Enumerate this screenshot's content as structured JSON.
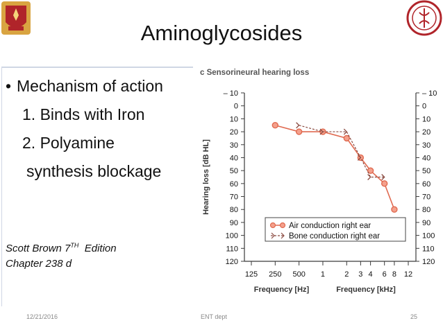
{
  "slide": {
    "title": "Aminoglycosides",
    "bullet": "Mechanism of action",
    "points": [
      "1. Binds with Iron",
      "2. Polyamine",
      "synthesis blockage"
    ],
    "reference_author": "Scott Brown 7",
    "reference_edition_sup": "TH",
    "reference_edition_rest": "  Edition",
    "reference_chapter": "Chapter 238 d",
    "footer_date": "12/21/2016",
    "footer_center": "ENT dept",
    "footer_page": "25"
  },
  "chart_data": {
    "type": "line",
    "title": "c  Sensorineural hearing loss",
    "ylabel": "Hearing loss [dB HL]",
    "xlabel_left": "Frequency [Hz]",
    "xlabel_right": "Frequency [kHz]",
    "ylim": [
      -10,
      120
    ],
    "y_reversed": true,
    "x_scale": "log",
    "y_ticks": [
      "– 10",
      "0",
      "10",
      "20",
      "30",
      "40",
      "50",
      "60",
      "70",
      "80",
      "90",
      "100",
      "110",
      "120"
    ],
    "y_tick_values": [
      -10,
      0,
      10,
      20,
      30,
      40,
      50,
      60,
      70,
      80,
      90,
      100,
      110,
      120
    ],
    "x_ticks": [
      {
        "hz": 125,
        "label": "125"
      },
      {
        "hz": 250,
        "label": "250"
      },
      {
        "hz": 500,
        "label": "500"
      },
      {
        "hz": 1000,
        "label": "1"
      },
      {
        "hz": 2000,
        "label": "2"
      },
      {
        "hz": 3000,
        "label": "3"
      },
      {
        "hz": 4000,
        "label": "4"
      },
      {
        "hz": 6000,
        "label": "6"
      },
      {
        "hz": 8000,
        "label": "8"
      },
      {
        "hz": 12000,
        "label": "12"
      }
    ],
    "series": [
      {
        "name": "Air conduction right ear",
        "marker": "circle",
        "color": "#e06a50",
        "points": [
          [
            250,
            15
          ],
          [
            500,
            20
          ],
          [
            1000,
            20
          ],
          [
            2000,
            25
          ],
          [
            3000,
            40
          ],
          [
            4000,
            50
          ],
          [
            6000,
            60
          ],
          [
            8000,
            80
          ]
        ]
      },
      {
        "name": "Bone conduction right ear",
        "marker": "arrow",
        "color": "#8a4a40",
        "points": [
          [
            500,
            15
          ],
          [
            1000,
            20
          ],
          [
            2000,
            20
          ],
          [
            3000,
            40
          ],
          [
            4000,
            55
          ],
          [
            6000,
            55
          ]
        ]
      }
    ],
    "legend_position": "bottom-right"
  },
  "colors": {
    "axis": "#3a3a3a",
    "air": "#e06a50",
    "bone": "#8a4a40",
    "title": "#555555",
    "logo_red": "#b0242a",
    "logo_gold": "#d9a441"
  }
}
